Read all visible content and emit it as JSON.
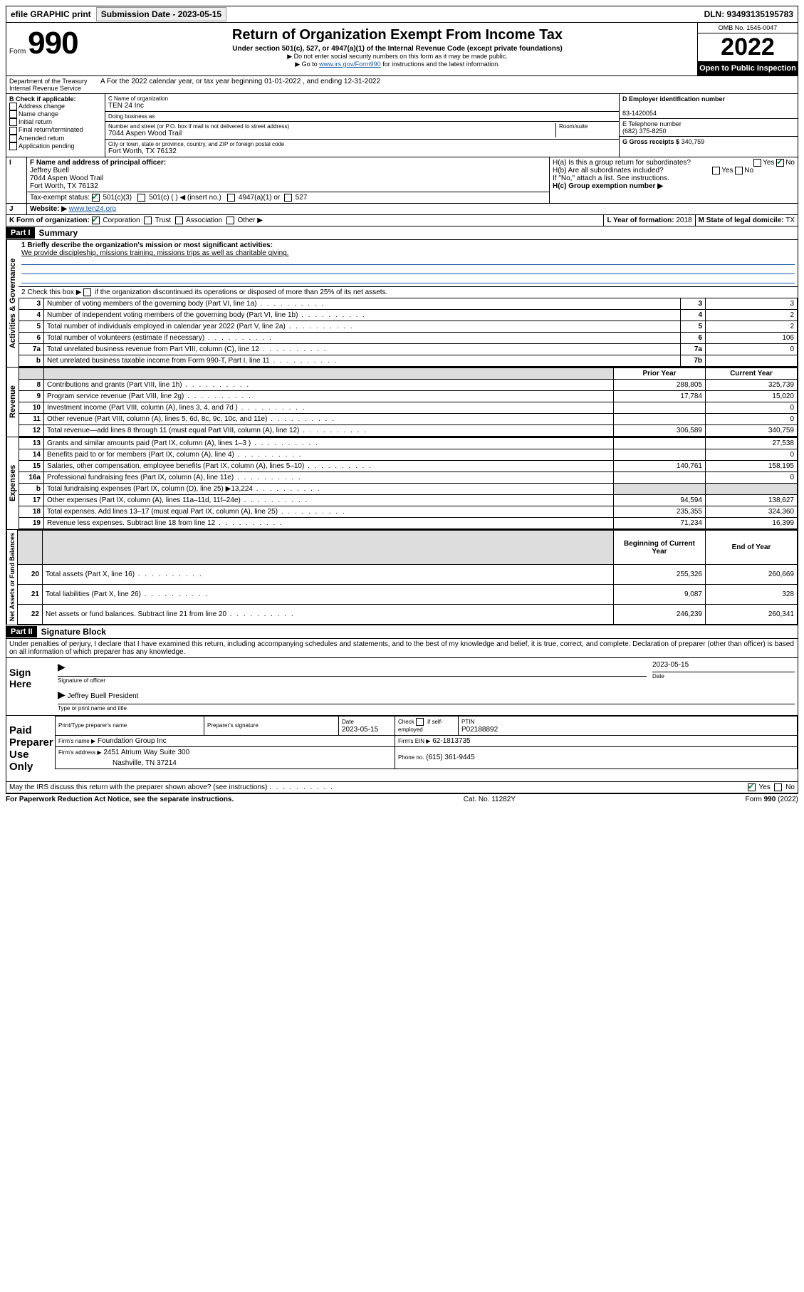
{
  "top_bar": {
    "efile": "efile GRAPHIC print",
    "submission_label": "Submission Date - 2023-05-15",
    "dln_label": "DLN: 93493135195783"
  },
  "header": {
    "form_word": "Form",
    "form_number": "990",
    "title": "Return of Organization Exempt From Income Tax",
    "subtitle": "Under section 501(c), 527, or 4947(a)(1) of the Internal Revenue Code (except private foundations)",
    "note1": "▶ Do not enter social security numbers on this form as it may be made public.",
    "note2_prefix": "▶ Go to ",
    "note2_link": "www.irs.gov/Form990",
    "note2_suffix": " for instructions and the latest information.",
    "omb": "OMB No. 1545-0047",
    "year": "2022",
    "inspection": "Open to Public Inspection",
    "dept": "Department of the Treasury",
    "irs": "Internal Revenue Service",
    "tax_year_line": "A For the 2022 calendar year, or tax year beginning 01-01-2022   , and ending 12-31-2022"
  },
  "block_b": {
    "heading": "B Check if applicable:",
    "opts": [
      "Address change",
      "Name change",
      "Initial return",
      "Final return/terminated",
      "Amended return",
      "Application pending"
    ]
  },
  "block_c": {
    "name_label": "C Name of organization",
    "name": "TEN 24 Inc",
    "dba_label": "Doing business as",
    "dba": "",
    "street_label": "Number and street (or P.O. box if mail is not delivered to street address)",
    "room_label": "Room/suite",
    "street": "7044 Aspen Wood Trail",
    "city_label": "City or town, state or province, country, and ZIP or foreign postal code",
    "city": "Fort Worth, TX  76132"
  },
  "block_d": {
    "label": "D Employer identification number",
    "value": "83-1420054"
  },
  "block_e": {
    "label": "E Telephone number",
    "value": "(682) 375-8250"
  },
  "block_g": {
    "label": "G Gross receipts $",
    "value": "340,759"
  },
  "block_f": {
    "label": "F Name and address of principal officer:",
    "name": "Jeffrey Buell",
    "street": "7044 Aspen Wood Trail",
    "city": "Fort Worth, TX  76132"
  },
  "block_h": {
    "a_label": "H(a)  Is this a group return for subordinates?",
    "b_label": "H(b)  Are all subordinates included?",
    "note": "If \"No,\" attach a list. See instructions.",
    "c_label": "H(c)  Group exemption number ▶",
    "yes": "Yes",
    "no": "No"
  },
  "row_i": {
    "label": "Tax-exempt status:",
    "o1": "501(c)(3)",
    "o2": "501(c) (   ) ◀ (insert no.)",
    "o3": "4947(a)(1) or",
    "o4": "527"
  },
  "row_j": {
    "label": "Website: ▶",
    "value": "www.ten24.org"
  },
  "row_k": {
    "label": "K Form of organization:",
    "opts": [
      "Corporation",
      "Trust",
      "Association",
      "Other ▶"
    ],
    "l_label": "L Year of formation:",
    "l_value": "2018",
    "m_label": "M State of legal domicile:",
    "m_value": "TX"
  },
  "part1": {
    "header": "Part I",
    "title": "Summary",
    "q1_label": "1  Briefly describe the organization's mission or most significant activities:",
    "q1_text": "We provide discipleship, missions training, missions trips as well as charitable giving.",
    "q2_label": "2   Check this box ▶  ",
    "q2_text": " if the organization discontinued its operations or disposed of more than 25% of its net assets.",
    "side_activities": "Activities & Governance",
    "side_revenue": "Revenue",
    "side_expenses": "Expenses",
    "side_net": "Net Assets or Fund Balances",
    "col_prior": "Prior Year",
    "col_current": "Current Year",
    "col_begin": "Beginning of Current Year",
    "col_end": "End of Year",
    "lines_gov": [
      {
        "n": "3",
        "t": "Number of voting members of the governing body (Part VI, line 1a)",
        "box": "3",
        "v": "3"
      },
      {
        "n": "4",
        "t": "Number of independent voting members of the governing body (Part VI, line 1b)",
        "box": "4",
        "v": "2"
      },
      {
        "n": "5",
        "t": "Total number of individuals employed in calendar year 2022 (Part V, line 2a)",
        "box": "5",
        "v": "2"
      },
      {
        "n": "6",
        "t": "Total number of volunteers (estimate if necessary)",
        "box": "6",
        "v": "106"
      },
      {
        "n": "7a",
        "t": "Total unrelated business revenue from Part VIII, column (C), line 12",
        "box": "7a",
        "v": "0"
      },
      {
        "n": "b",
        "t": "Net unrelated business taxable income from Form 990-T, Part I, line 11",
        "box": "7b",
        "v": ""
      }
    ],
    "lines_rev": [
      {
        "n": "8",
        "t": "Contributions and grants (Part VIII, line 1h)",
        "p": "288,805",
        "c": "325,739"
      },
      {
        "n": "9",
        "t": "Program service revenue (Part VIII, line 2g)",
        "p": "17,784",
        "c": "15,020"
      },
      {
        "n": "10",
        "t": "Investment income (Part VIII, column (A), lines 3, 4, and 7d )",
        "p": "",
        "c": "0"
      },
      {
        "n": "11",
        "t": "Other revenue (Part VIII, column (A), lines 5, 6d, 8c, 9c, 10c, and 11e)",
        "p": "",
        "c": "0"
      },
      {
        "n": "12",
        "t": "Total revenue—add lines 8 through 11 (must equal Part VIII, column (A), line 12)",
        "p": "306,589",
        "c": "340,759"
      }
    ],
    "lines_exp": [
      {
        "n": "13",
        "t": "Grants and similar amounts paid (Part IX, column (A), lines 1–3 )",
        "p": "",
        "c": "27,538"
      },
      {
        "n": "14",
        "t": "Benefits paid to or for members (Part IX, column (A), line 4)",
        "p": "",
        "c": "0"
      },
      {
        "n": "15",
        "t": "Salaries, other compensation, employee benefits (Part IX, column (A), lines 5–10)",
        "p": "140,761",
        "c": "158,195"
      },
      {
        "n": "16a",
        "t": "Professional fundraising fees (Part IX, column (A), line 11e)",
        "p": "",
        "c": "0"
      },
      {
        "n": "b",
        "t": "Total fundraising expenses (Part IX, column (D), line 25) ▶13,224",
        "p": "shade",
        "c": "shade"
      },
      {
        "n": "17",
        "t": "Other expenses (Part IX, column (A), lines 11a–11d, 11f–24e)",
        "p": "94,594",
        "c": "138,627"
      },
      {
        "n": "18",
        "t": "Total expenses. Add lines 13–17 (must equal Part IX, column (A), line 25)",
        "p": "235,355",
        "c": "324,360"
      },
      {
        "n": "19",
        "t": "Revenue less expenses. Subtract line 18 from line 12",
        "p": "71,234",
        "c": "16,399"
      }
    ],
    "lines_net": [
      {
        "n": "20",
        "t": "Total assets (Part X, line 16)",
        "p": "255,326",
        "c": "260,669"
      },
      {
        "n": "21",
        "t": "Total liabilities (Part X, line 26)",
        "p": "9,087",
        "c": "328"
      },
      {
        "n": "22",
        "t": "Net assets or fund balances. Subtract line 21 from line 20",
        "p": "246,239",
        "c": "260,341"
      }
    ]
  },
  "part2": {
    "header": "Part II",
    "title": "Signature Block",
    "penalties": "Under penalties of perjury, I declare that I have examined this return, including accompanying schedules and statements, and to the best of my knowledge and belief, it is true, correct, and complete. Declaration of preparer (other than officer) is based on all information of which preparer has any knowledge.",
    "sign_here": "Sign Here",
    "sig_officer_label": "Signature of officer",
    "date_label": "Date",
    "sig_date": "2023-05-15",
    "officer_name": "Jeffrey Buell  President",
    "type_name_label": "Type or print name and title",
    "paid_preparer": "Paid Preparer Use Only",
    "pp_name_label": "Print/Type preparer's name",
    "pp_sig_label": "Preparer's signature",
    "pp_date_label": "Date",
    "pp_date": "2023-05-15",
    "pp_check_label": "Check",
    "pp_self": "if self-employed",
    "ptin_label": "PTIN",
    "ptin": "P02188892",
    "firm_name_label": "Firm's name    ▶",
    "firm_name": "Foundation Group Inc",
    "firm_ein_label": "Firm's EIN ▶",
    "firm_ein": "62-1813735",
    "firm_addr_label": "Firm's address ▶",
    "firm_addr1": "2451 Atrium Way Suite 300",
    "firm_addr2": "Nashville, TN  37214",
    "phone_label": "Phone no.",
    "phone": "(615) 361-9445",
    "discuss": "May the IRS discuss this return with the preparer shown above? (see instructions)",
    "yes": "Yes",
    "no": "No"
  },
  "footer": {
    "left": "For Paperwork Reduction Act Notice, see the separate instructions.",
    "center": "Cat. No. 11282Y",
    "right": "Form 990 (2022)"
  }
}
